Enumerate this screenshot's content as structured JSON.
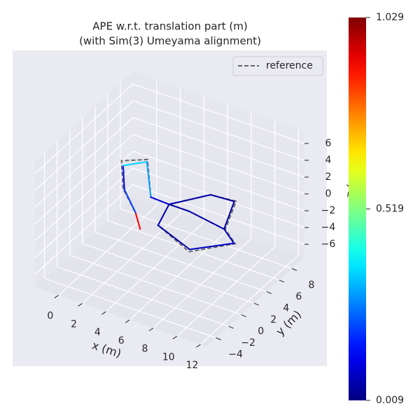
{
  "chart_data": {
    "type": "trajectory3d",
    "title": "APE w.r.t. translation part (m)",
    "subtitle": "(with Sim(3) Umeyama alignment)",
    "xlabel": "x (m)",
    "ylabel": "y (m)",
    "zlabel": "z (m)",
    "xlim": [
      -2,
      12.5
    ],
    "ylim": [
      -5.5,
      10
    ],
    "zlim": [
      -7.5,
      7.5
    ],
    "xticks": [
      0,
      2,
      4,
      6,
      8,
      10,
      12
    ],
    "yticks": [
      {
        "value": -4,
        "label": "−4"
      },
      {
        "value": -2,
        "label": "−2"
      },
      0,
      2,
      4,
      6,
      8
    ],
    "zticks": [
      {
        "value": -6,
        "label": "−6"
      },
      {
        "value": -4,
        "label": "−4"
      },
      {
        "value": -2,
        "label": "−2"
      },
      0,
      2,
      4,
      6
    ],
    "clim": [
      0.009,
      1.029
    ],
    "cticks": [
      0.009,
      0.519,
      1.029
    ],
    "colormap": "jet",
    "grid": true,
    "legend": "upper right",
    "series": [
      {
        "name": "reference",
        "color": "#666666",
        "dash": true,
        "x": [
          3.1,
          2.8,
          2.2,
          2.1,
          3.5,
          3.3,
          4.9,
          6.8,
          8.8,
          8.9,
          9.9,
          7.5,
          4.5,
          4.9,
          6.6,
          8.8
        ],
        "y": [
          1.6,
          1.4,
          0.6,
          0.5,
          2.0,
          2.9,
          2.8,
          5.8,
          6.1,
          4.2,
          3.9,
          1.1,
          1.8,
          2.8,
          2.8,
          4.2
        ],
        "z": [
          -3,
          -1,
          2,
          5.4,
          5.2,
          0,
          0,
          0,
          0,
          -2,
          -3,
          -3.2,
          -2,
          0,
          0,
          -2
        ]
      },
      {
        "x": [
          3.1,
          2.8,
          2.3,
          2.3,
          3.5,
          3.3,
          4.9,
          6.8,
          8.7,
          8.8,
          9.8,
          7.5,
          4.5,
          4.9,
          6.6,
          8.8
        ],
        "y": [
          1.6,
          1.4,
          0.6,
          0.4,
          1.9,
          2.9,
          2.8,
          5.8,
          6.0,
          4.2,
          3.9,
          1.2,
          1.8,
          2.8,
          2.8,
          4.2
        ],
        "z": [
          -3,
          -1,
          2,
          5,
          5,
          0,
          0,
          0,
          0,
          -2,
          -3,
          -3,
          -2,
          0,
          0,
          -2
        ],
        "error": [
          0.9,
          0.2,
          0.15,
          0.35,
          0.3,
          0.1,
          0.05,
          0.04,
          0.05,
          0.06,
          0.08,
          0.05,
          0.06,
          0.04,
          0.05,
          0.06
        ]
      }
    ]
  }
}
